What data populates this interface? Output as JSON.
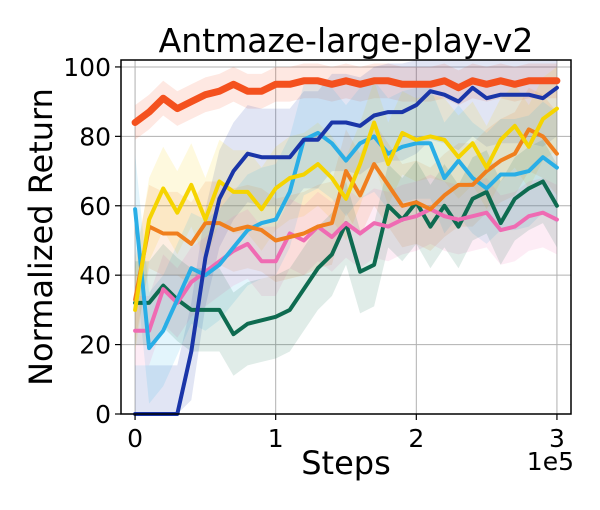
{
  "chart_data": {
    "type": "line",
    "title": "Antmaze-large-play-v2",
    "xlabel": "Steps",
    "ylabel": "Normalized Return",
    "x_multiplier_label": "1e5",
    "xlim": [
      -0.1,
      3.1
    ],
    "ylim": [
      0,
      102
    ],
    "grid": true,
    "x_ticks": [
      {
        "value": 0,
        "label": "0"
      },
      {
        "value": 1,
        "label": "1"
      },
      {
        "value": 2,
        "label": "2"
      },
      {
        "value": 3,
        "label": "3"
      }
    ],
    "y_ticks": [
      {
        "value": 0,
        "label": "0"
      },
      {
        "value": 20,
        "label": "20"
      },
      {
        "value": 40,
        "label": "40"
      },
      {
        "value": 60,
        "label": "60"
      },
      {
        "value": 80,
        "label": "80"
      },
      {
        "value": 100,
        "label": "100"
      }
    ],
    "x": [
      0,
      0.1,
      0.2,
      0.3,
      0.4,
      0.5,
      0.6,
      0.7,
      0.8,
      0.9,
      1.0,
      1.1,
      1.2,
      1.3,
      1.4,
      1.5,
      1.6,
      1.7,
      1.8,
      1.9,
      2.0,
      2.1,
      2.2,
      2.3,
      2.4,
      2.5,
      2.6,
      2.7,
      2.8,
      2.9,
      3.0
    ],
    "series": [
      {
        "name": "red-orange",
        "color": "#f4511e",
        "width": 7,
        "values": [
          84,
          87,
          91,
          88,
          90,
          92,
          93,
          95,
          93,
          93,
          95,
          95,
          96,
          96,
          95,
          96,
          95,
          96,
          96,
          95,
          95,
          95,
          96,
          94,
          96,
          95,
          96,
          95,
          96,
          96,
          96
        ],
        "band": 5
      },
      {
        "name": "dark-blue",
        "color": "#1a35a8",
        "width": 4,
        "values": [
          0,
          0,
          0,
          0,
          18,
          45,
          62,
          70,
          75,
          74,
          74,
          74,
          79,
          79,
          84,
          84,
          83,
          86,
          87,
          87,
          89,
          93,
          92,
          90,
          94,
          91,
          92,
          92,
          92,
          91,
          94
        ],
        "band": 14
      },
      {
        "name": "yellow",
        "color": "#f5d400",
        "width": 4,
        "values": [
          30,
          56,
          65,
          58,
          66,
          56,
          67,
          64,
          64,
          59,
          65,
          68,
          69,
          72,
          68,
          62,
          72,
          84,
          72,
          81,
          79,
          80,
          79,
          74,
          78,
          71,
          79,
          83,
          77,
          85,
          88
        ],
        "band": 12
      },
      {
        "name": "orange",
        "color": "#f07f1e",
        "width": 4,
        "values": [
          33,
          54,
          52,
          52,
          49,
          55,
          55,
          53,
          54,
          53,
          50,
          51,
          52,
          54,
          55,
          70,
          63,
          72,
          66,
          60,
          61,
          59,
          63,
          66,
          66,
          70,
          73,
          75,
          82,
          80,
          75
        ],
        "band": 12
      },
      {
        "name": "light-blue",
        "color": "#29aee6",
        "width": 4,
        "values": [
          59,
          19,
          24,
          33,
          42,
          40,
          43,
          48,
          53,
          55,
          56,
          64,
          79,
          81,
          78,
          73,
          78,
          80,
          75,
          77,
          78,
          78,
          68,
          73,
          68,
          65,
          69,
          69,
          70,
          74,
          71
        ],
        "band": 16
      },
      {
        "name": "pink",
        "color": "#ef6bb3",
        "width": 4,
        "values": [
          24,
          24,
          36,
          32,
          38,
          41,
          44,
          47,
          49,
          44,
          44,
          52,
          50,
          54,
          51,
          55,
          52,
          55,
          54,
          56,
          57,
          59,
          57,
          56,
          57,
          58,
          53,
          54,
          57,
          58,
          56
        ],
        "band": 10
      },
      {
        "name": "dark-green",
        "color": "#0e6b50",
        "width": 4,
        "values": [
          32,
          32,
          37,
          33,
          30,
          30,
          30,
          23,
          26,
          27,
          28,
          30,
          36,
          42,
          46,
          55,
          41,
          43,
          60,
          56,
          61,
          54,
          60,
          54,
          62,
          64,
          55,
          62,
          65,
          67,
          60
        ],
        "band": 12
      }
    ]
  }
}
